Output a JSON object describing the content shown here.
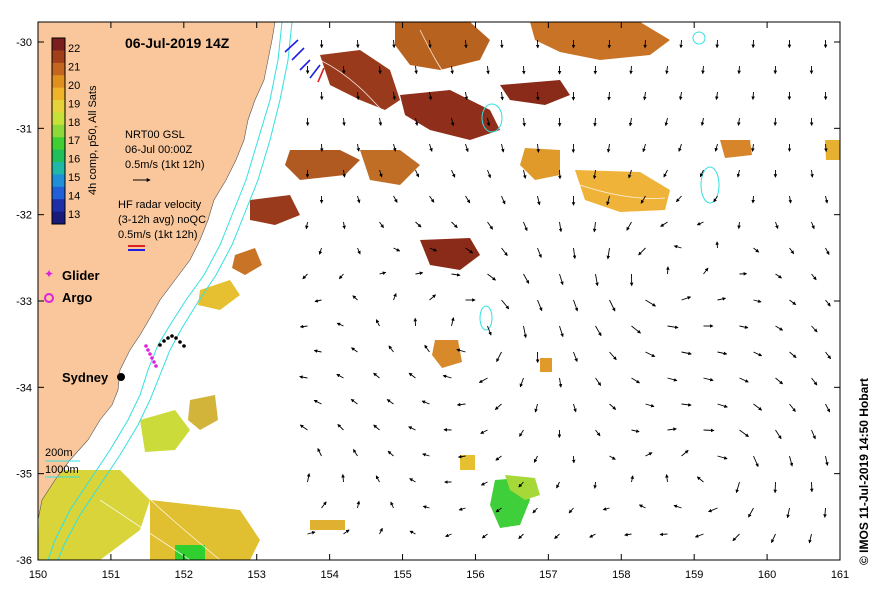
{
  "map": {
    "title": "06-Jul-2019 14Z",
    "x_ticks": [
      "150",
      "151",
      "152",
      "153",
      "154",
      "155",
      "156",
      "157",
      "158",
      "159",
      "160",
      "161"
    ],
    "y_ticks": [
      "-30",
      "-31",
      "-32",
      "-33",
      "-34",
      "-35",
      "-36"
    ],
    "colorbar": {
      "label": "4h comp, p50, All Sats",
      "ticks": [
        "22",
        "21",
        "20",
        "19",
        "18",
        "17",
        "16",
        "15",
        "14",
        "13"
      ],
      "colors": [
        "#7a1e1e",
        "#a13f1a",
        "#c4661f",
        "#e0901f",
        "#f0b429",
        "#e6d23a",
        "#c8e03a",
        "#8fd83a",
        "#3fcf33",
        "#1fbf5a",
        "#1fb8a8",
        "#1f8fd8",
        "#1f5fd8",
        "#1f2fa8",
        "#1a1a7a"
      ]
    },
    "legend": {
      "nrt_line1": "NRT00 GSL",
      "nrt_line2": "06-Jul 00:00Z",
      "nrt_line3": "0.5m/s (1kt 12h)",
      "hf_line1": "HF radar velocity",
      "hf_line2": "(3-12h avg) noQC",
      "hf_line3": "0.5m/s (1kt 12h)",
      "glider": "Glider",
      "argo": "Argo",
      "depth_200": "200m",
      "depth_1000": "1000m"
    },
    "place_label": "Sydney",
    "credit": "© IMOS 11-Jul-2019 14:50 Hobart",
    "colors": {
      "land": "#f9c79b",
      "contour": "#33e0e0",
      "glider": "#e020e0",
      "hf_red": "#e02020",
      "hf_blue": "#2020e0"
    }
  }
}
